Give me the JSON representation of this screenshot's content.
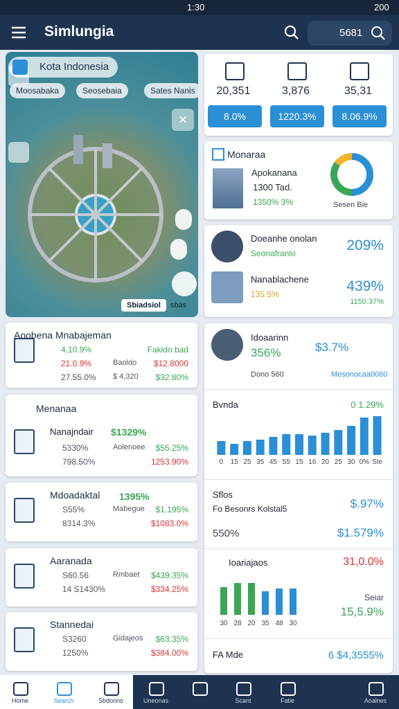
{
  "status_bar": {
    "time": "1:30",
    "battery": "200"
  },
  "app_bar": {
    "title": "Simlungia",
    "search": "5681"
  },
  "map": {
    "title": "Kota Indonesia",
    "chips": [
      "Moosabaka",
      "Seosebaia",
      "Sates Nanis"
    ],
    "footer": "Sbiadsiol",
    "footer_note": "sbas"
  },
  "stats": {
    "values": [
      "20,351",
      "3,876",
      "35,31"
    ],
    "badges": [
      "8.0%",
      "1220.3%",
      "8.06.9%"
    ]
  },
  "donut_card": {
    "title": "Monaraa",
    "label": "Apokanana",
    "lines": [
      "1300 Tad.",
      "1350% 3%"
    ],
    "legend": "Sesen Bie",
    "segments": [
      {
        "value": 50,
        "color": "#2b8fd6"
      },
      {
        "value": 35,
        "color": "#3aa655"
      },
      {
        "value": 15,
        "color": "#f0b429"
      }
    ]
  },
  "kpi_card": {
    "rows": [
      {
        "name": "Doeanhe onolan",
        "sub": "Seonafranlo",
        "value": "209%"
      },
      {
        "name": "Nanablachene",
        "sub": "135.5%",
        "value": "439%",
        "note": "1150.37%"
      }
    ]
  },
  "left_cards": [
    {
      "title": "Aoobena Mnabajeman",
      "rows": [
        [
          "4,10.9%",
          "Fakido bad"
        ],
        [
          "21.0.9%",
          "Baoldo",
          "$12.8000"
        ],
        [
          "27.55.0%",
          "$ 4,320",
          "$32.80%"
        ]
      ]
    },
    {
      "title": "Menanaa",
      "subtitle": "Nanajndair",
      "value": "$1329%",
      "rows": [
        [
          "5330%",
          "Aolenoee",
          "$55.25%"
        ],
        [
          "798.50%",
          "1253.90%"
        ]
      ]
    },
    {
      "title": "Mdoadaktal",
      "value": "1395%",
      "rows": [
        [
          "S55%",
          "Mabegue",
          "$1.195%"
        ],
        [
          "8314.3%",
          "$1083.0%"
        ]
      ]
    },
    {
      "title": "Aaranada",
      "rows": [
        [
          "S60.56",
          "Rmbaet",
          "$439.35%"
        ],
        [
          "14 S1430%",
          "$334.25%"
        ]
      ]
    },
    {
      "title": "Stannedai",
      "rows": [
        [
          "S3260",
          "Gidajeos",
          "$63.35%"
        ],
        [
          "1250%",
          "$384.00%"
        ]
      ]
    }
  ],
  "person_card": {
    "name": "Idoaarinn",
    "value": "356%",
    "change": "$3.7%",
    "footer": "Dono 560",
    "footer_note": "Mesonocaa0060"
  },
  "chart_data": [
    {
      "type": "bar",
      "title": "Bvnda",
      "subtitle": "0 1.29%",
      "color": "#2b8fd6",
      "categories": [
        "0",
        "15",
        "25",
        "35",
        "45",
        "55",
        "15",
        "16",
        "20",
        "25",
        "30",
        "0%",
        "Ste"
      ],
      "values": [
        20,
        16,
        20,
        22,
        26,
        30,
        30,
        28,
        32,
        36,
        42,
        54,
        56
      ],
      "ylim": [
        0,
        60
      ]
    },
    {
      "type": "bar",
      "title": "Ioariajaos",
      "subtitle": "31,0.0%",
      "categories": [
        "30",
        "28",
        "20",
        "35",
        "48",
        "30"
      ],
      "values": [
        40,
        46,
        46,
        34,
        38,
        38
      ],
      "colors": [
        "#3aa655",
        "#3aa655",
        "#3aa655",
        "#2b8fd6",
        "#2b8fd6",
        "#2b8fd6"
      ],
      "ylim": [
        0,
        60
      ]
    }
  ],
  "sales_card": {
    "title": "Sflos",
    "line": "Fo Besonrs Kolstal5",
    "value": "$.97%",
    "sub": "550%",
    "sub_value": "$1.579%"
  },
  "summary": {
    "label": "Seiar",
    "value": "15,5.9%",
    "footer": "FA Mde",
    "footer_value": "6 $4,3555%"
  },
  "nav": [
    "Home",
    "Search",
    "Sbdonno",
    "Uneonas",
    "Scant",
    "Fatie",
    "Aoalnes"
  ]
}
